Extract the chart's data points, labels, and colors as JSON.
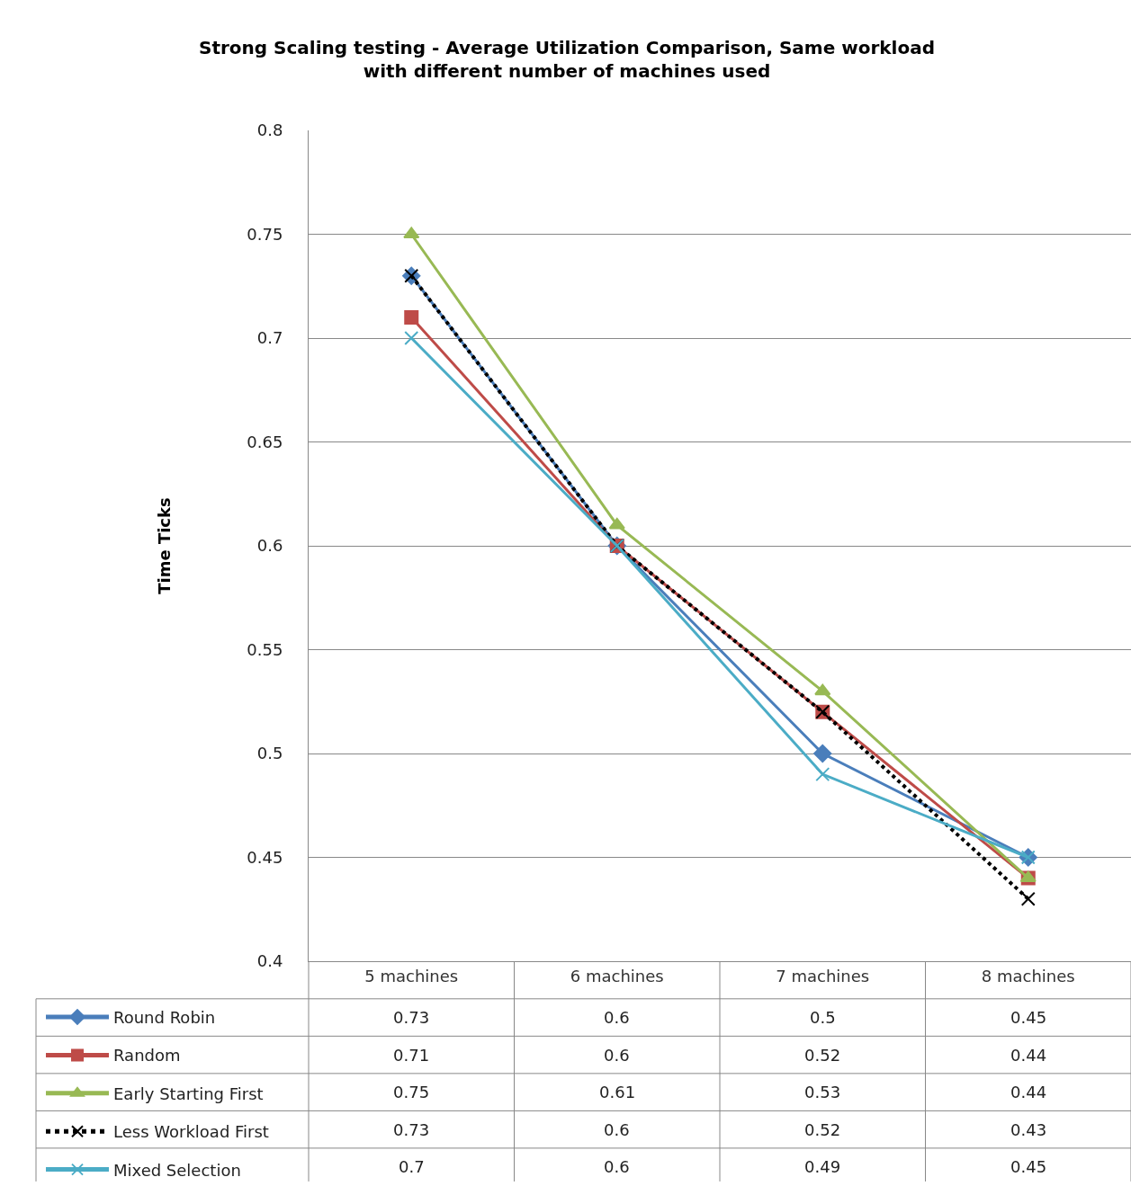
{
  "chart_data": {
    "type": "line",
    "title": "Strong Scaling testing - Average Utilization Comparison, Same workload with different number of machines used",
    "ylabel": "Time Ticks",
    "categories": [
      "5 machines",
      "6 machines",
      "7 machines",
      "8 machines"
    ],
    "series": [
      {
        "name": "Round Robin",
        "color": "#4a7ebb",
        "marker": "diamond",
        "line_style": "solid",
        "values": [
          0.73,
          0.6,
          0.5,
          0.45
        ]
      },
      {
        "name": "Random",
        "color": "#be4b48",
        "marker": "square",
        "line_style": "solid",
        "values": [
          0.71,
          0.6,
          0.52,
          0.44
        ]
      },
      {
        "name": "Early Starting First",
        "color": "#98b954",
        "marker": "triangle",
        "line_style": "solid",
        "values": [
          0.75,
          0.61,
          0.53,
          0.44
        ]
      },
      {
        "name": "Less Workload First",
        "color": "#000000",
        "marker": "cross",
        "line_style": "dotted",
        "values": [
          0.73,
          0.6,
          0.52,
          0.43
        ]
      },
      {
        "name": "Mixed Selection",
        "color": "#4bacc6",
        "marker": "cross",
        "line_style": "solid",
        "values": [
          0.7,
          0.6,
          0.49,
          0.45
        ]
      }
    ],
    "ylim": [
      0.4,
      0.8
    ],
    "yticks": [
      0.4,
      0.45,
      0.5,
      0.55,
      0.6,
      0.65,
      0.7,
      0.75,
      0.8
    ],
    "grid": "y",
    "legend": "bottom left",
    "data_labels": true
  }
}
